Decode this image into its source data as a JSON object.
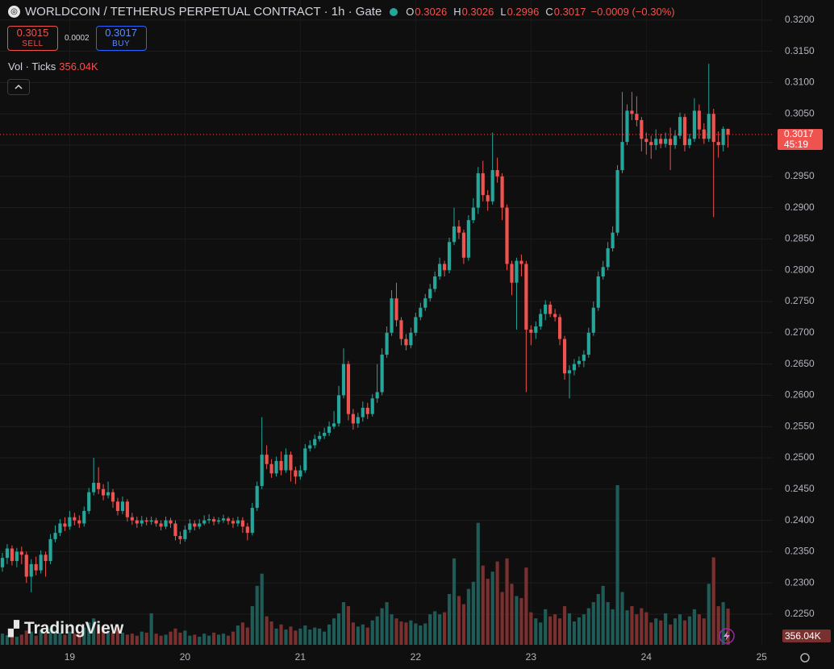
{
  "chart_data": {
    "type": "candlestick",
    "title": "WORLDCOIN / TETHERUS PERPETUAL CONTRACT · 1h · Gate",
    "ohlc_legend": [
      {
        "key": "O",
        "value": "0.3026"
      },
      {
        "key": "H",
        "value": "0.3026"
      },
      {
        "key": "L",
        "value": "0.2996"
      },
      {
        "key": "C",
        "value": "0.3017"
      }
    ],
    "change": "−0.0009 (−0.30%)",
    "trade": {
      "sell_price": "0.3015",
      "sell_label": "SELL",
      "spread": "0.0002",
      "buy_price": "0.3017",
      "buy_label": "BUY"
    },
    "volume_indicator": {
      "name": "Vol · Ticks",
      "value": "356.04K"
    },
    "current_price": "0.3017",
    "countdown": "45:19",
    "logo": "TradingView",
    "up_color": "#26a69a",
    "down_color": "#ef5350",
    "volume_up_color": "#1f5c57",
    "volume_down_color": "#7a302f",
    "grid": true,
    "ylim": [
      0.2201,
      0.3232
    ],
    "yticks": [
      {
        "value": 0.225,
        "label": "0.2250"
      },
      {
        "value": 0.23,
        "label": "0.2300"
      },
      {
        "value": 0.235,
        "label": "0.2350"
      },
      {
        "value": 0.24,
        "label": "0.2400"
      },
      {
        "value": 0.245,
        "label": "0.2450"
      },
      {
        "value": 0.25,
        "label": "0.2500"
      },
      {
        "value": 0.255,
        "label": "0.2550"
      },
      {
        "value": 0.26,
        "label": "0.2600"
      },
      {
        "value": 0.265,
        "label": "0.2650"
      },
      {
        "value": 0.27,
        "label": "0.2700"
      },
      {
        "value": 0.275,
        "label": "0.2750"
      },
      {
        "value": 0.28,
        "label": "0.2800"
      },
      {
        "value": 0.285,
        "label": "0.2850"
      },
      {
        "value": 0.29,
        "label": "0.2900"
      },
      {
        "value": 0.295,
        "label": "0.2950"
      },
      {
        "value": 0.3,
        "label": "0.3000"
      },
      {
        "value": 0.305,
        "label": "0.3050"
      },
      {
        "value": 0.31,
        "label": "0.3100"
      },
      {
        "value": 0.315,
        "label": "0.3150"
      },
      {
        "value": 0.32,
        "label": "0.3200"
      }
    ],
    "xlim": [
      -0.5,
      160.3
    ],
    "xticks": [
      {
        "value": 14,
        "label": "19"
      },
      {
        "value": 38,
        "label": "20"
      },
      {
        "value": 62,
        "label": "21"
      },
      {
        "value": 86,
        "label": "22"
      },
      {
        "value": 110,
        "label": "23"
      },
      {
        "value": 134,
        "label": "24"
      },
      {
        "value": 158,
        "label": "25"
      }
    ],
    "open": [
      0.2325,
      0.234,
      0.2355,
      0.2335,
      0.235,
      0.2345,
      0.231,
      0.233,
      0.232,
      0.2345,
      0.2335,
      0.237,
      0.238,
      0.2395,
      0.239,
      0.2405,
      0.24,
      0.2395,
      0.2415,
      0.2445,
      0.246,
      0.245,
      0.244,
      0.2445,
      0.243,
      0.2415,
      0.243,
      0.2405,
      0.24,
      0.2395,
      0.24,
      0.2398,
      0.24,
      0.2395,
      0.239,
      0.24,
      0.2395,
      0.2375,
      0.237,
      0.2385,
      0.2395,
      0.239,
      0.2395,
      0.24,
      0.2402,
      0.2398,
      0.24,
      0.2403,
      0.2399,
      0.2395,
      0.24,
      0.239,
      0.238,
      0.242,
      0.2455,
      0.2505,
      0.249,
      0.2475,
      0.2495,
      0.248,
      0.2505,
      0.248,
      0.247,
      0.248,
      0.2515,
      0.252,
      0.253,
      0.2535,
      0.254,
      0.255,
      0.2555,
      0.26,
      0.265,
      0.257,
      0.2555,
      0.2565,
      0.258,
      0.257,
      0.2595,
      0.2605,
      0.2665,
      0.27,
      0.2755,
      0.272,
      0.269,
      0.268,
      0.27,
      0.2725,
      0.274,
      0.2755,
      0.277,
      0.279,
      0.281,
      0.28,
      0.2845,
      0.287,
      0.286,
      0.282,
      0.288,
      0.29,
      0.2955,
      0.292,
      0.291,
      0.296,
      0.295,
      0.29,
      0.281,
      0.278,
      0.2815,
      0.281,
      0.2705,
      0.27,
      0.271,
      0.273,
      0.2745,
      0.273,
      0.2725,
      0.269,
      0.2635,
      0.264,
      0.265,
      0.2655,
      0.2665,
      0.27,
      0.274,
      0.279,
      0.2805,
      0.2835,
      0.286,
      0.296,
      0.3005,
      0.3055,
      0.305,
      0.304,
      0.301,
      0.3005,
      0.3,
      0.301,
      0.3002,
      0.301,
      0.3,
      0.3015,
      0.3045,
      0.3,
      0.301,
      0.3055,
      0.3025,
      0.301,
      0.305,
      0.3005,
      0.3,
      0.3026
    ],
    "high": [
      0.2348,
      0.2362,
      0.236,
      0.2356,
      0.2358,
      0.235,
      0.2338,
      0.2342,
      0.2352,
      0.235,
      0.2378,
      0.2392,
      0.2402,
      0.2405,
      0.2415,
      0.2412,
      0.2408,
      0.2422,
      0.2452,
      0.25,
      0.2485,
      0.2458,
      0.2462,
      0.245,
      0.2436,
      0.2438,
      0.2434,
      0.2412,
      0.2406,
      0.2407,
      0.2405,
      0.2406,
      0.2404,
      0.24,
      0.2406,
      0.2404,
      0.24,
      0.2382,
      0.2392,
      0.2402,
      0.24,
      0.2402,
      0.2408,
      0.241,
      0.2406,
      0.2405,
      0.2409,
      0.2406,
      0.2404,
      0.2406,
      0.2405,
      0.2396,
      0.2428,
      0.2462,
      0.2565,
      0.252,
      0.2498,
      0.2502,
      0.251,
      0.2515,
      0.251,
      0.2486,
      0.2488,
      0.2522,
      0.2528,
      0.2537,
      0.2542,
      0.2548,
      0.2558,
      0.2575,
      0.2615,
      0.2675,
      0.2655,
      0.2578,
      0.2572,
      0.259,
      0.2588,
      0.2602,
      0.265,
      0.2675,
      0.271,
      0.2768,
      0.278,
      0.2725,
      0.2698,
      0.2708,
      0.2732,
      0.2748,
      0.2762,
      0.2778,
      0.2798,
      0.282,
      0.2815,
      0.2852,
      0.29,
      0.288,
      0.2865,
      0.2888,
      0.2915,
      0.2965,
      0.2975,
      0.2928,
      0.302,
      0.298,
      0.2955,
      0.2905,
      0.2815,
      0.282,
      0.2825,
      0.2815,
      0.2712,
      0.2718,
      0.2738,
      0.2752,
      0.275,
      0.2738,
      0.273,
      0.2695,
      0.2648,
      0.2658,
      0.2662,
      0.2672,
      0.2708,
      0.275,
      0.2798,
      0.2815,
      0.2845,
      0.287,
      0.2968,
      0.3085,
      0.3065,
      0.3085,
      0.3078,
      0.3045,
      0.302,
      0.3015,
      0.3025,
      0.3018,
      0.302,
      0.3028,
      0.3024,
      0.3052,
      0.305,
      0.3018,
      0.3075,
      0.3065,
      0.3035,
      0.313,
      0.3058,
      0.3022,
      0.303,
      0.3026
    ],
    "low": [
      0.2318,
      0.233,
      0.2328,
      0.2325,
      0.233,
      0.23,
      0.2285,
      0.2312,
      0.2315,
      0.231,
      0.233,
      0.2365,
      0.2375,
      0.2383,
      0.2385,
      0.2392,
      0.2388,
      0.239,
      0.241,
      0.244,
      0.2442,
      0.2432,
      0.2435,
      0.242,
      0.2408,
      0.241,
      0.2398,
      0.2393,
      0.2388,
      0.239,
      0.2392,
      0.2393,
      0.239,
      0.2384,
      0.2386,
      0.2388,
      0.2368,
      0.2362,
      0.2366,
      0.238,
      0.2384,
      0.2386,
      0.2392,
      0.2395,
      0.2392,
      0.2394,
      0.2396,
      0.2393,
      0.2388,
      0.239,
      0.238,
      0.2368,
      0.2376,
      0.2415,
      0.245,
      0.2482,
      0.2468,
      0.247,
      0.2472,
      0.2476,
      0.2462,
      0.2458,
      0.2465,
      0.2476,
      0.251,
      0.2515,
      0.2526,
      0.253,
      0.2535,
      0.2546,
      0.255,
      0.2595,
      0.256,
      0.2545,
      0.2548,
      0.2558,
      0.2562,
      0.2566,
      0.2588,
      0.26,
      0.266,
      0.2695,
      0.271,
      0.268,
      0.2672,
      0.2675,
      0.2695,
      0.272,
      0.2735,
      0.275,
      0.2765,
      0.2785,
      0.279,
      0.2795,
      0.284,
      0.285,
      0.281,
      0.2815,
      0.2875,
      0.289,
      0.291,
      0.2895,
      0.2905,
      0.294,
      0.288,
      0.28,
      0.276,
      0.2705,
      0.279,
      0.2605,
      0.268,
      0.269,
      0.2705,
      0.272,
      0.2725,
      0.2718,
      0.268,
      0.2625,
      0.2595,
      0.2632,
      0.2645,
      0.2645,
      0.266,
      0.2695,
      0.2735,
      0.2785,
      0.28,
      0.283,
      0.2855,
      0.2955,
      0.3,
      0.304,
      0.303,
      0.299,
      0.2985,
      0.2978,
      0.2992,
      0.2995,
      0.2996,
      0.296,
      0.2994,
      0.301,
      0.299,
      0.2995,
      0.3005,
      0.301,
      0.3002,
      0.3005,
      0.2885,
      0.298,
      0.299,
      0.2996
    ],
    "close": [
      0.234,
      0.2355,
      0.2335,
      0.235,
      0.2345,
      0.231,
      0.233,
      0.232,
      0.2345,
      0.2335,
      0.237,
      0.238,
      0.2395,
      0.239,
      0.2405,
      0.24,
      0.2395,
      0.2415,
      0.2445,
      0.246,
      0.245,
      0.244,
      0.2445,
      0.243,
      0.2415,
      0.243,
      0.2405,
      0.24,
      0.2395,
      0.24,
      0.2398,
      0.24,
      0.2395,
      0.239,
      0.24,
      0.2395,
      0.2375,
      0.237,
      0.2385,
      0.2395,
      0.239,
      0.2395,
      0.24,
      0.2402,
      0.2398,
      0.24,
      0.2403,
      0.2399,
      0.2395,
      0.24,
      0.239,
      0.238,
      0.242,
      0.2455,
      0.2505,
      0.249,
      0.2475,
      0.2495,
      0.248,
      0.2505,
      0.248,
      0.247,
      0.248,
      0.2515,
      0.252,
      0.253,
      0.2535,
      0.254,
      0.255,
      0.2555,
      0.26,
      0.265,
      0.257,
      0.2555,
      0.2565,
      0.258,
      0.257,
      0.2595,
      0.2605,
      0.2665,
      0.27,
      0.2755,
      0.272,
      0.269,
      0.268,
      0.27,
      0.2725,
      0.274,
      0.2755,
      0.277,
      0.279,
      0.281,
      0.28,
      0.2845,
      0.287,
      0.286,
      0.282,
      0.288,
      0.29,
      0.2955,
      0.292,
      0.291,
      0.296,
      0.295,
      0.29,
      0.281,
      0.278,
      0.2815,
      0.281,
      0.2705,
      0.27,
      0.271,
      0.273,
      0.2745,
      0.273,
      0.2725,
      0.269,
      0.2635,
      0.264,
      0.265,
      0.2655,
      0.2665,
      0.27,
      0.274,
      0.279,
      0.2805,
      0.2835,
      0.286,
      0.296,
      0.3005,
      0.3055,
      0.305,
      0.304,
      0.301,
      0.3005,
      0.3,
      0.301,
      0.3002,
      0.301,
      0.3,
      0.3015,
      0.3045,
      0.3,
      0.301,
      0.3055,
      0.3025,
      0.301,
      0.305,
      0.3005,
      0.3,
      0.3026,
      0.3017
    ],
    "volume": [
      110,
      95,
      120,
      80,
      100,
      140,
      130,
      90,
      150,
      120,
      160,
      140,
      120,
      100,
      130,
      110,
      120,
      170,
      220,
      260,
      180,
      150,
      140,
      120,
      160,
      120,
      100,
      110,
      90,
      130,
      120,
      310,
      110,
      90,
      100,
      130,
      160,
      120,
      140,
      90,
      100,
      80,
      110,
      90,
      120,
      100,
      110,
      90,
      130,
      190,
      220,
      170,
      380,
      580,
      700,
      280,
      230,
      160,
      200,
      150,
      180,
      140,
      160,
      190,
      150,
      170,
      160,
      130,
      200,
      260,
      310,
      420,
      380,
      220,
      180,
      200,
      170,
      240,
      280,
      360,
      420,
      300,
      260,
      230,
      220,
      240,
      210,
      190,
      210,
      300,
      330,
      300,
      320,
      500,
      850,
      480,
      400,
      550,
      620,
      1200,
      780,
      650,
      720,
      820,
      520,
      850,
      600,
      480,
      460,
      760,
      320,
      260,
      220,
      350,
      280,
      300,
      260,
      380,
      310,
      230,
      270,
      300,
      360,
      420,
      500,
      580,
      420,
      350,
      1570,
      520,
      340,
      380,
      300,
      360,
      320,
      220,
      260,
      240,
      310,
      200,
      260,
      300,
      240,
      280,
      350,
      300,
      260,
      600,
      860,
      380,
      420,
      356.04
    ]
  }
}
